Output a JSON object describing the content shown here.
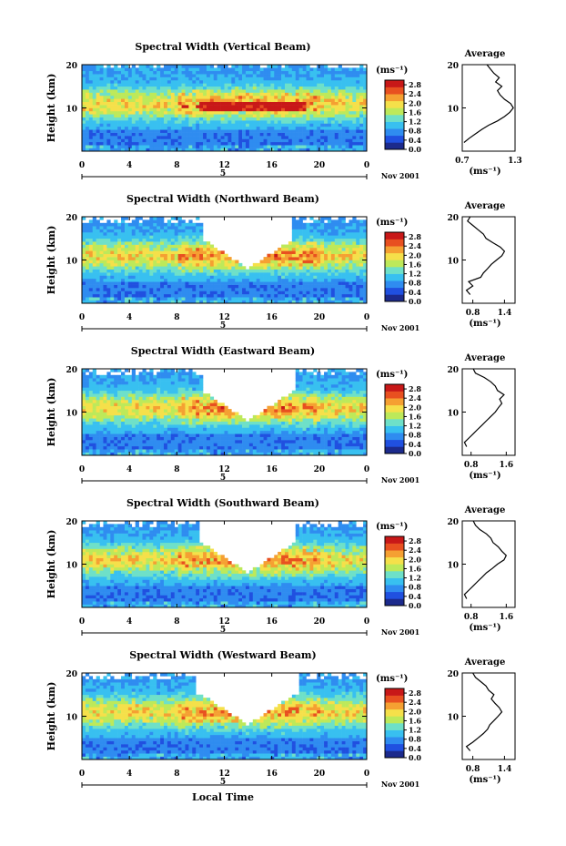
{
  "colorbar_unit": "(ms⁻¹)",
  "colorbar_ticks": [
    "0.0",
    "0.4",
    "0.8",
    "1.2",
    "1.6",
    "2.0",
    "2.4",
    "2.8"
  ],
  "x_ticks": [
    "0",
    "4",
    "8",
    "12",
    "16",
    "20",
    "0"
  ],
  "y_ticks": [
    "20",
    "10"
  ],
  "ylabel": "Height (km)",
  "date_day": "5",
  "date_label": "Nov 2001",
  "xlabel": "Local Time",
  "avg_title": "Average",
  "avg_unit": "(ms⁻¹)",
  "colors": {
    "scale": [
      "#1c2a8c",
      "#2050e0",
      "#2f8cf0",
      "#38c0f0",
      "#6ee0c8",
      "#bde95a",
      "#f5e04a",
      "#f5a032",
      "#e85020",
      "#c81818"
    ]
  },
  "chart_data": [
    {
      "type": "heatmap",
      "title": "Spectral Width (Vertical Beam)",
      "x_range": [
        0,
        24
      ],
      "y_range": [
        0,
        20
      ],
      "colorbar_range": [
        0.0,
        3.0
      ],
      "profile": {
        "xticks": [
          "0.7",
          "1.3"
        ],
        "xlim": [
          0.7,
          1.3
        ],
        "points": [
          [
            0.72,
            2
          ],
          [
            0.78,
            3
          ],
          [
            0.85,
            4
          ],
          [
            0.92,
            5
          ],
          [
            1.0,
            6
          ],
          [
            1.1,
            7
          ],
          [
            1.18,
            8
          ],
          [
            1.24,
            9
          ],
          [
            1.28,
            10
          ],
          [
            1.25,
            11
          ],
          [
            1.18,
            12
          ],
          [
            1.13,
            13
          ],
          [
            1.1,
            14
          ],
          [
            1.15,
            15
          ],
          [
            1.08,
            16
          ],
          [
            1.12,
            17
          ],
          [
            1.06,
            18
          ],
          [
            1.02,
            19
          ],
          [
            0.98,
            20
          ]
        ]
      }
    },
    {
      "type": "heatmap",
      "title": "Spectral Width (Northward Beam)",
      "x_range": [
        0,
        24
      ],
      "y_range": [
        0,
        20
      ],
      "colorbar_range": [
        0.0,
        3.0
      ],
      "profile": {
        "xticks": [
          "0.8",
          "1.4"
        ],
        "xlim": [
          0.6,
          1.6
        ],
        "points": [
          [
            0.75,
            2
          ],
          [
            0.68,
            3
          ],
          [
            0.8,
            4
          ],
          [
            0.72,
            5
          ],
          [
            0.95,
            6
          ],
          [
            1.0,
            7
          ],
          [
            1.08,
            8
          ],
          [
            1.15,
            9
          ],
          [
            1.25,
            10
          ],
          [
            1.35,
            11
          ],
          [
            1.4,
            12
          ],
          [
            1.32,
            13
          ],
          [
            1.18,
            14
          ],
          [
            1.05,
            15
          ],
          [
            1.0,
            16
          ],
          [
            0.9,
            17
          ],
          [
            0.8,
            18
          ],
          [
            0.7,
            19
          ],
          [
            0.75,
            20
          ]
        ]
      }
    },
    {
      "type": "heatmap",
      "title": "Spectral Width (Eastward Beam)",
      "x_range": [
        0,
        24
      ],
      "y_range": [
        0,
        20
      ],
      "colorbar_range": [
        0.0,
        3.0
      ],
      "profile": {
        "xticks": [
          "0.8",
          "1.6"
        ],
        "xlim": [
          0.6,
          1.8
        ],
        "points": [
          [
            0.7,
            2
          ],
          [
            0.65,
            3
          ],
          [
            0.75,
            4
          ],
          [
            0.85,
            5
          ],
          [
            0.95,
            6
          ],
          [
            1.05,
            7
          ],
          [
            1.15,
            8
          ],
          [
            1.25,
            9
          ],
          [
            1.35,
            10
          ],
          [
            1.42,
            11
          ],
          [
            1.5,
            12
          ],
          [
            1.45,
            13
          ],
          [
            1.55,
            14
          ],
          [
            1.4,
            15
          ],
          [
            1.35,
            16
          ],
          [
            1.25,
            17
          ],
          [
            1.1,
            18
          ],
          [
            0.9,
            19
          ],
          [
            0.85,
            20
          ]
        ]
      }
    },
    {
      "type": "heatmap",
      "title": "Spectral Width (Southward Beam)",
      "x_range": [
        0,
        24
      ],
      "y_range": [
        0,
        20
      ],
      "colorbar_range": [
        0.0,
        3.0
      ],
      "profile": {
        "xticks": [
          "0.8",
          "1.6"
        ],
        "xlim": [
          0.6,
          1.8
        ],
        "points": [
          [
            0.7,
            2
          ],
          [
            0.65,
            3
          ],
          [
            0.75,
            4
          ],
          [
            0.85,
            5
          ],
          [
            0.95,
            6
          ],
          [
            1.05,
            7
          ],
          [
            1.15,
            8
          ],
          [
            1.28,
            9
          ],
          [
            1.4,
            10
          ],
          [
            1.55,
            11
          ],
          [
            1.6,
            12
          ],
          [
            1.5,
            13
          ],
          [
            1.42,
            14
          ],
          [
            1.3,
            15
          ],
          [
            1.25,
            16
          ],
          [
            1.15,
            17
          ],
          [
            1.0,
            18
          ],
          [
            0.9,
            19
          ],
          [
            0.85,
            20
          ]
        ]
      }
    },
    {
      "type": "heatmap",
      "title": "Spectral Width (Westward Beam)",
      "x_range": [
        0,
        24
      ],
      "y_range": [
        0,
        20
      ],
      "colorbar_range": [
        0.0,
        3.0
      ],
      "profile": {
        "xticks": [
          "0.8",
          "1.4"
        ],
        "xlim": [
          0.6,
          1.6
        ],
        "points": [
          [
            0.75,
            2
          ],
          [
            0.68,
            3
          ],
          [
            0.8,
            4
          ],
          [
            0.9,
            5
          ],
          [
            1.0,
            6
          ],
          [
            1.08,
            7
          ],
          [
            1.12,
            8
          ],
          [
            1.2,
            9
          ],
          [
            1.28,
            10
          ],
          [
            1.35,
            11
          ],
          [
            1.3,
            12
          ],
          [
            1.22,
            13
          ],
          [
            1.15,
            14
          ],
          [
            1.2,
            15
          ],
          [
            1.1,
            16
          ],
          [
            1.05,
            17
          ],
          [
            0.95,
            18
          ],
          [
            0.85,
            19
          ],
          [
            0.8,
            20
          ]
        ]
      }
    }
  ]
}
